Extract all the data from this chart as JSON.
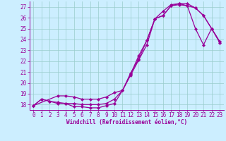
{
  "xlabel": "Windchill (Refroidissement éolien,°C)",
  "background_color": "#cceeff",
  "line_color": "#990099",
  "grid_color": "#99cccc",
  "series1_x": [
    0,
    1,
    2,
    3,
    4,
    5,
    6,
    7,
    8,
    9,
    10,
    11,
    12,
    13,
    14,
    15,
    16,
    17,
    18,
    19,
    20,
    21,
    22,
    23
  ],
  "series1_y": [
    17.9,
    18.5,
    18.3,
    18.1,
    18.1,
    17.8,
    17.8,
    17.7,
    17.7,
    17.9,
    18.1,
    19.3,
    20.9,
    22.2,
    23.9,
    25.9,
    26.2,
    27.1,
    27.2,
    27.1,
    25.0,
    23.5,
    25.0,
    23.7
  ],
  "series2_x": [
    0,
    1,
    2,
    3,
    4,
    5,
    6,
    7,
    8,
    9,
    10,
    11,
    12,
    13,
    14,
    15,
    16,
    17,
    18,
    19,
    20,
    21,
    22,
    23
  ],
  "series2_y": [
    17.9,
    18.5,
    18.3,
    18.2,
    18.1,
    18.1,
    18.0,
    18.0,
    18.0,
    18.1,
    18.5,
    19.3,
    20.8,
    22.5,
    23.9,
    25.9,
    26.6,
    27.2,
    27.3,
    27.3,
    26.9,
    26.2,
    25.0,
    23.8
  ],
  "series3_x": [
    0,
    3,
    4,
    5,
    6,
    7,
    8,
    9,
    10,
    11,
    12,
    13,
    14,
    15,
    16,
    17,
    18,
    19,
    20,
    21,
    22,
    23
  ],
  "series3_y": [
    17.9,
    18.8,
    18.8,
    18.7,
    18.5,
    18.5,
    18.5,
    18.7,
    19.1,
    19.3,
    20.7,
    22.1,
    23.5,
    25.9,
    26.2,
    27.1,
    27.3,
    27.1,
    26.9,
    26.2,
    25.0,
    23.8
  ],
  "ylim": [
    17.5,
    27.5
  ],
  "xlim": [
    -0.5,
    23.5
  ],
  "yticks": [
    18,
    19,
    20,
    21,
    22,
    23,
    24,
    25,
    26,
    27
  ],
  "xticks": [
    0,
    1,
    2,
    3,
    4,
    5,
    6,
    7,
    8,
    9,
    10,
    11,
    12,
    13,
    14,
    15,
    16,
    17,
    18,
    19,
    20,
    21,
    22,
    23
  ],
  "tick_fontsize": 5.5,
  "xlabel_fontsize": 5.5,
  "linewidth": 0.9,
  "markersize": 2.2
}
